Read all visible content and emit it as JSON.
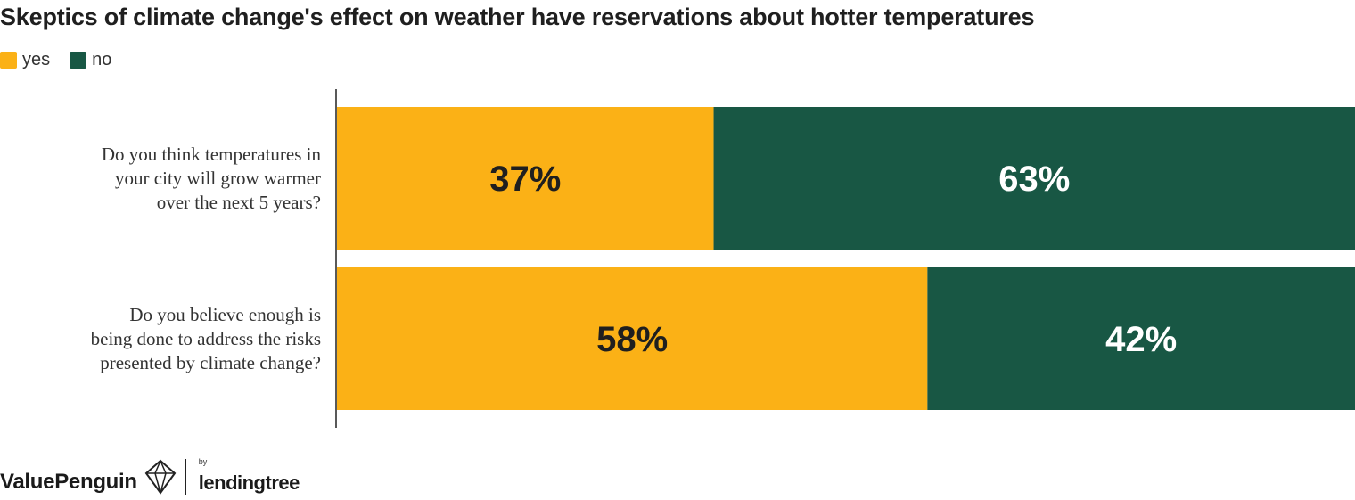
{
  "title": "Skeptics of climate change's effect on weather have reservations about hotter temperatures",
  "legend": {
    "items": [
      {
        "label": "yes",
        "color": "#FBB116"
      },
      {
        "label": "no",
        "color": "#185744"
      }
    ]
  },
  "chart_data": {
    "type": "bar",
    "orientation": "horizontal",
    "stacked": true,
    "normalized": true,
    "categories": [
      [
        "Do you think temperatures in",
        "your city will grow warmer",
        "over the next 5 years?"
      ],
      [
        "Do you believe enough is",
        "being done to address the risks",
        "presented by climate change?"
      ]
    ],
    "series": [
      {
        "name": "yes",
        "values": [
          37,
          58
        ],
        "labels": [
          "37%",
          "58%"
        ],
        "color": "#FBB116",
        "label_color": "#1f1f1f"
      },
      {
        "name": "no",
        "values": [
          63,
          42
        ],
        "labels": [
          "63%",
          "42%"
        ],
        "color": "#185744",
        "label_color": "#ffffff"
      }
    ],
    "xlim": [
      0,
      100
    ],
    "legend_position": "top-left",
    "grid": false
  },
  "footer": {
    "brand": "ValuePenguin",
    "by": "by",
    "partner": "lendingtree"
  }
}
